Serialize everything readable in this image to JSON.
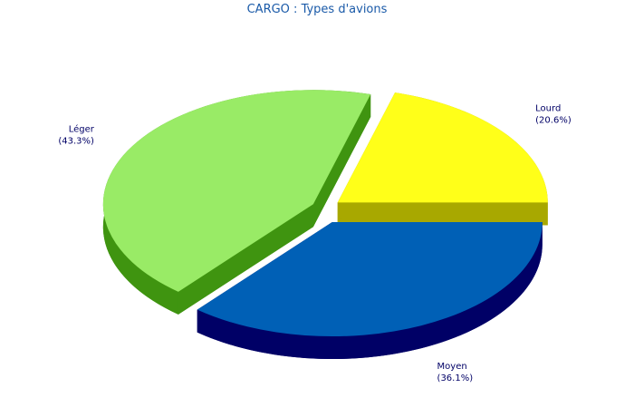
{
  "chart_data": {
    "type": "pie3d",
    "title": "CARGO : Types d'avions",
    "categories": [
      "Lourd",
      "Léger",
      "Moyen"
    ],
    "values": [
      20.6,
      43.3,
      36.1
    ],
    "value_labels": [
      "(20.6%)",
      "(43.3%)",
      "(36.1%)"
    ],
    "colors": [
      "#ffff19",
      "#99eb66",
      "#0060b6"
    ],
    "side_colors": [
      "#a8a800",
      "#3f9410",
      "#000066"
    ]
  }
}
